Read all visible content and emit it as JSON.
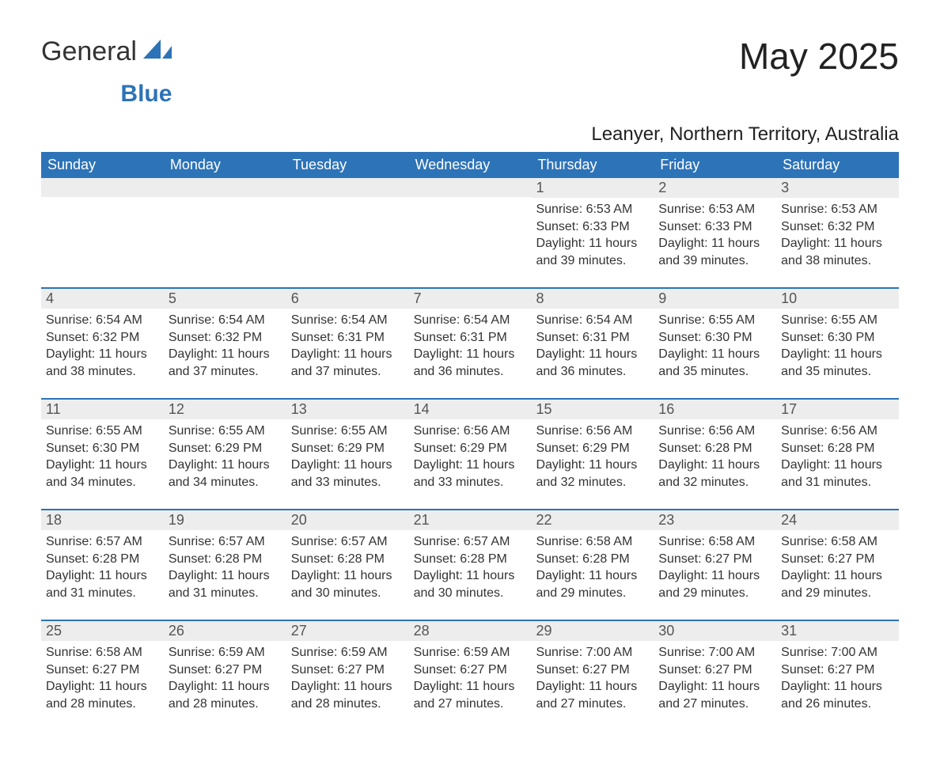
{
  "brand": {
    "general": "General",
    "blue": "Blue"
  },
  "title": "May 2025",
  "location": "Leanyer, Northern Territory, Australia",
  "calendar": {
    "headers_bg": "#2d73b7",
    "headers_fg": "#ffffff",
    "daynum_bg": "#ededed",
    "week_divider": "#2d73b7",
    "text_color": "#333333",
    "label_sunrise": "Sunrise: ",
    "label_sunset": "Sunset: ",
    "label_daylight_prefix": "Daylight: ",
    "days_of_week": [
      "Sunday",
      "Monday",
      "Tuesday",
      "Wednesday",
      "Thursday",
      "Friday",
      "Saturday"
    ],
    "weeks": [
      [
        {
          "n": "",
          "sunrise": "",
          "sunset": "",
          "daylight": ""
        },
        {
          "n": "",
          "sunrise": "",
          "sunset": "",
          "daylight": ""
        },
        {
          "n": "",
          "sunrise": "",
          "sunset": "",
          "daylight": ""
        },
        {
          "n": "",
          "sunrise": "",
          "sunset": "",
          "daylight": ""
        },
        {
          "n": "1",
          "sunrise": "6:53 AM",
          "sunset": "6:33 PM",
          "daylight": "11 hours and 39 minutes."
        },
        {
          "n": "2",
          "sunrise": "6:53 AM",
          "sunset": "6:33 PM",
          "daylight": "11 hours and 39 minutes."
        },
        {
          "n": "3",
          "sunrise": "6:53 AM",
          "sunset": "6:32 PM",
          "daylight": "11 hours and 38 minutes."
        }
      ],
      [
        {
          "n": "4",
          "sunrise": "6:54 AM",
          "sunset": "6:32 PM",
          "daylight": "11 hours and 38 minutes."
        },
        {
          "n": "5",
          "sunrise": "6:54 AM",
          "sunset": "6:32 PM",
          "daylight": "11 hours and 37 minutes."
        },
        {
          "n": "6",
          "sunrise": "6:54 AM",
          "sunset": "6:31 PM",
          "daylight": "11 hours and 37 minutes."
        },
        {
          "n": "7",
          "sunrise": "6:54 AM",
          "sunset": "6:31 PM",
          "daylight": "11 hours and 36 minutes."
        },
        {
          "n": "8",
          "sunrise": "6:54 AM",
          "sunset": "6:31 PM",
          "daylight": "11 hours and 36 minutes."
        },
        {
          "n": "9",
          "sunrise": "6:55 AM",
          "sunset": "6:30 PM",
          "daylight": "11 hours and 35 minutes."
        },
        {
          "n": "10",
          "sunrise": "6:55 AM",
          "sunset": "6:30 PM",
          "daylight": "11 hours and 35 minutes."
        }
      ],
      [
        {
          "n": "11",
          "sunrise": "6:55 AM",
          "sunset": "6:30 PM",
          "daylight": "11 hours and 34 minutes."
        },
        {
          "n": "12",
          "sunrise": "6:55 AM",
          "sunset": "6:29 PM",
          "daylight": "11 hours and 34 minutes."
        },
        {
          "n": "13",
          "sunrise": "6:55 AM",
          "sunset": "6:29 PM",
          "daylight": "11 hours and 33 minutes."
        },
        {
          "n": "14",
          "sunrise": "6:56 AM",
          "sunset": "6:29 PM",
          "daylight": "11 hours and 33 minutes."
        },
        {
          "n": "15",
          "sunrise": "6:56 AM",
          "sunset": "6:29 PM",
          "daylight": "11 hours and 32 minutes."
        },
        {
          "n": "16",
          "sunrise": "6:56 AM",
          "sunset": "6:28 PM",
          "daylight": "11 hours and 32 minutes."
        },
        {
          "n": "17",
          "sunrise": "6:56 AM",
          "sunset": "6:28 PM",
          "daylight": "11 hours and 31 minutes."
        }
      ],
      [
        {
          "n": "18",
          "sunrise": "6:57 AM",
          "sunset": "6:28 PM",
          "daylight": "11 hours and 31 minutes."
        },
        {
          "n": "19",
          "sunrise": "6:57 AM",
          "sunset": "6:28 PM",
          "daylight": "11 hours and 31 minutes."
        },
        {
          "n": "20",
          "sunrise": "6:57 AM",
          "sunset": "6:28 PM",
          "daylight": "11 hours and 30 minutes."
        },
        {
          "n": "21",
          "sunrise": "6:57 AM",
          "sunset": "6:28 PM",
          "daylight": "11 hours and 30 minutes."
        },
        {
          "n": "22",
          "sunrise": "6:58 AM",
          "sunset": "6:28 PM",
          "daylight": "11 hours and 29 minutes."
        },
        {
          "n": "23",
          "sunrise": "6:58 AM",
          "sunset": "6:27 PM",
          "daylight": "11 hours and 29 minutes."
        },
        {
          "n": "24",
          "sunrise": "6:58 AM",
          "sunset": "6:27 PM",
          "daylight": "11 hours and 29 minutes."
        }
      ],
      [
        {
          "n": "25",
          "sunrise": "6:58 AM",
          "sunset": "6:27 PM",
          "daylight": "11 hours and 28 minutes."
        },
        {
          "n": "26",
          "sunrise": "6:59 AM",
          "sunset": "6:27 PM",
          "daylight": "11 hours and 28 minutes."
        },
        {
          "n": "27",
          "sunrise": "6:59 AM",
          "sunset": "6:27 PM",
          "daylight": "11 hours and 28 minutes."
        },
        {
          "n": "28",
          "sunrise": "6:59 AM",
          "sunset": "6:27 PM",
          "daylight": "11 hours and 27 minutes."
        },
        {
          "n": "29",
          "sunrise": "7:00 AM",
          "sunset": "6:27 PM",
          "daylight": "11 hours and 27 minutes."
        },
        {
          "n": "30",
          "sunrise": "7:00 AM",
          "sunset": "6:27 PM",
          "daylight": "11 hours and 27 minutes."
        },
        {
          "n": "31",
          "sunrise": "7:00 AM",
          "sunset": "6:27 PM",
          "daylight": "11 hours and 26 minutes."
        }
      ]
    ]
  }
}
